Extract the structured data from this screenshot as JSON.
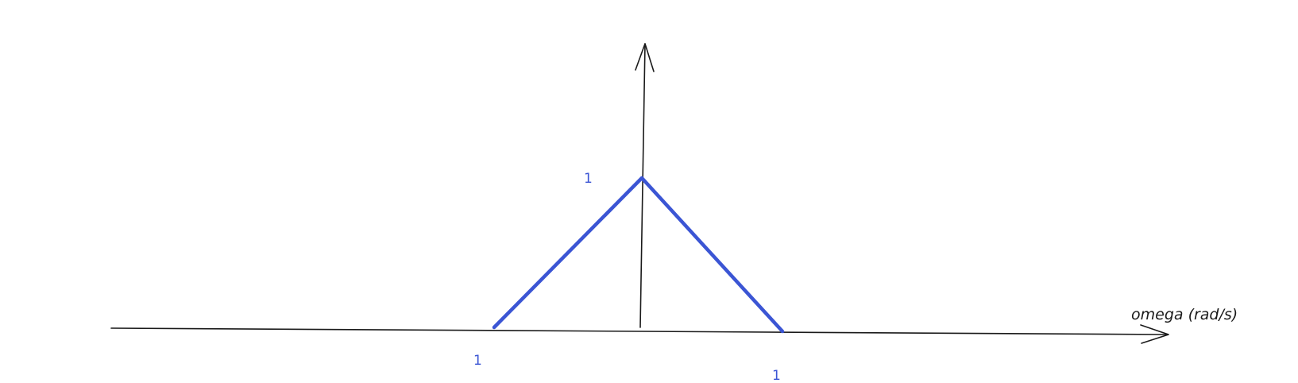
{
  "diagram": {
    "x_axis_label": "omega (rad/s)",
    "peak_label": "1",
    "left_base_label": "1",
    "right_base_label": "1",
    "colors": {
      "axis": "#1a1a1a",
      "shape": "#3b55d4",
      "label": "#3b55d4",
      "background": "#ffffff"
    }
  }
}
